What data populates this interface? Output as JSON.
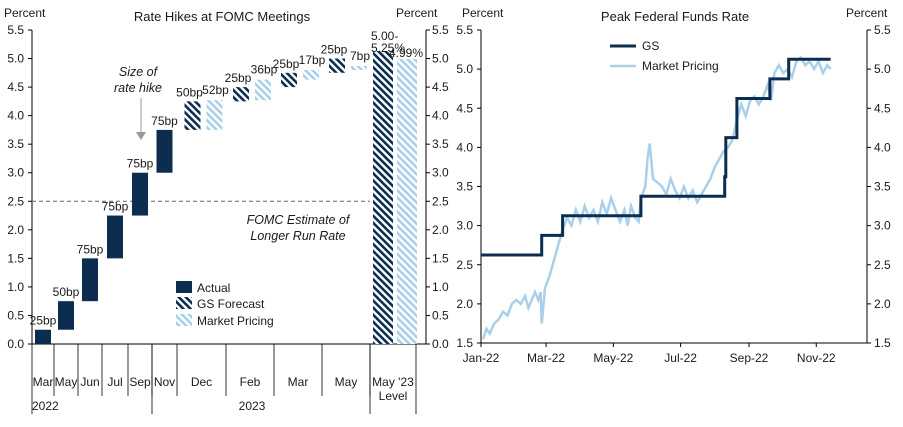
{
  "chart_data": [
    {
      "type": "waterfall",
      "title": "Rate Hikes at FOMC Meetings",
      "ylabel_left": "Percent",
      "ylabel_right": "Percent",
      "ylim": [
        0,
        5.5
      ],
      "yticks": [
        "0.0",
        "0.5",
        "1.0",
        "1.5",
        "2.0",
        "2.5",
        "3.0",
        "3.5",
        "4.0",
        "4.5",
        "5.0",
        "5.5"
      ],
      "reference_line": {
        "value": 2.5,
        "label_line1": "FOMC Estimate of",
        "label_line2": "Longer Run Rate"
      },
      "annotation": {
        "line1": "Size of",
        "line2": "rate hike"
      },
      "meetings": [
        {
          "label": "Mar",
          "type": "actual",
          "start": 0.0,
          "end": 0.25,
          "hike": "25bp"
        },
        {
          "label": "May",
          "type": "actual",
          "start": 0.25,
          "end": 0.75,
          "hike": "50bp"
        },
        {
          "label": "Jun",
          "type": "actual",
          "start": 0.75,
          "end": 1.5,
          "hike": "75bp"
        },
        {
          "label": "Jul",
          "type": "actual",
          "start": 1.5,
          "end": 2.25,
          "hike": "75bp"
        },
        {
          "label": "Sep",
          "type": "actual",
          "start": 2.25,
          "end": 3.0,
          "hike": "75bp"
        },
        {
          "label": "Nov",
          "type": "actual",
          "start": 3.0,
          "end": 3.75,
          "hike": "75bp"
        },
        {
          "label": "Dec",
          "gs": {
            "start": 3.75,
            "end": 4.25,
            "hike": "50bp"
          },
          "market": {
            "start": 3.75,
            "end": 4.27,
            "hike": "52bp"
          }
        },
        {
          "label": "Feb",
          "gs": {
            "start": 4.25,
            "end": 4.5,
            "hike": "25bp"
          },
          "market": {
            "start": 4.27,
            "end": 4.63,
            "hike": "36bp"
          }
        },
        {
          "label": "Mar",
          "gs": {
            "start": 4.5,
            "end": 4.75,
            "hike": "25bp"
          },
          "market": {
            "start": 4.63,
            "end": 4.8,
            "hike": "17bp"
          }
        },
        {
          "label": "May",
          "gs": {
            "start": 4.75,
            "end": 5.0,
            "hike": "25bp"
          },
          "market": {
            "start": 4.8,
            "end": 4.87,
            "hike": "7bp"
          }
        }
      ],
      "level_bars": {
        "label_line1": "May '23",
        "label_line2": "Level",
        "gs": {
          "value": 5.13,
          "label_line1": "5.00-",
          "label_line2": "5.25%"
        },
        "market": {
          "value": 4.99,
          "label": "4.99%"
        }
      },
      "year_labels": {
        "y2022": "2022",
        "y2023": "2023"
      },
      "legend": {
        "actual": "Actual",
        "gs": "GS Forecast",
        "market": "Market Pricing"
      }
    },
    {
      "type": "line",
      "title": "Peak Federal Funds Rate",
      "ylabel_left": "Percent",
      "ylabel_right": "Percent",
      "ylim": [
        1.5,
        5.5
      ],
      "yticks": [
        "1.5",
        "2.0",
        "2.5",
        "3.0",
        "3.5",
        "4.0",
        "4.5",
        "5.0",
        "5.5"
      ],
      "xticks": [
        "Jan-22",
        "Mar-22",
        "May-22",
        "Jul-22",
        "Sep-22",
        "Nov-22"
      ],
      "x_range_days": [
        0,
        350
      ],
      "series": [
        {
          "name": "GS",
          "color": "#0c2d4f",
          "points": [
            [
              0,
              2.625
            ],
            [
              55,
              2.625
            ],
            [
              55,
              2.875
            ],
            [
              74,
              2.875
            ],
            [
              74,
              3.125
            ],
            [
              145,
              3.125
            ],
            [
              145,
              3.375
            ],
            [
              221,
              3.375
            ],
            [
              221,
              3.625
            ],
            [
              222,
              3.625
            ],
            [
              222,
              4.125
            ],
            [
              232,
              4.125
            ],
            [
              232,
              4.625
            ],
            [
              262,
              4.625
            ],
            [
              262,
              4.875
            ],
            [
              279,
              4.875
            ],
            [
              279,
              5.125
            ],
            [
              317,
              5.125
            ]
          ]
        },
        {
          "name": "Market Pricing",
          "color": "#a9cfe9",
          "points": [
            [
              2,
              1.55
            ],
            [
              5,
              1.68
            ],
            [
              8,
              1.62
            ],
            [
              12,
              1.75
            ],
            [
              16,
              1.8
            ],
            [
              20,
              1.9
            ],
            [
              24,
              1.85
            ],
            [
              28,
              2.0
            ],
            [
              32,
              2.05
            ],
            [
              36,
              2.0
            ],
            [
              40,
              2.1
            ],
            [
              43,
              1.95
            ],
            [
              46,
              2.05
            ],
            [
              49,
              2.15
            ],
            [
              52,
              2.05
            ],
            [
              54,
              2.15
            ],
            [
              55,
              1.75
            ],
            [
              58,
              2.2
            ],
            [
              62,
              2.35
            ],
            [
              66,
              2.55
            ],
            [
              70,
              2.75
            ],
            [
              74,
              2.95
            ],
            [
              78,
              3.1
            ],
            [
              82,
              3.0
            ],
            [
              86,
              3.2
            ],
            [
              90,
              3.05
            ],
            [
              94,
              3.25
            ],
            [
              98,
              3.1
            ],
            [
              102,
              3.2
            ],
            [
              106,
              3.05
            ],
            [
              110,
              3.3
            ],
            [
              114,
              3.15
            ],
            [
              118,
              3.35
            ],
            [
              122,
              3.2
            ],
            [
              126,
              3.05
            ],
            [
              130,
              3.2
            ],
            [
              133,
              3.0
            ],
            [
              136,
              3.25
            ],
            [
              140,
              3.1
            ],
            [
              143,
              3.05
            ],
            [
              145,
              3.35
            ],
            [
              149,
              3.5
            ],
            [
              151,
              3.85
            ],
            [
              153,
              4.05
            ],
            [
              156,
              3.6
            ],
            [
              160,
              3.55
            ],
            [
              164,
              3.5
            ],
            [
              168,
              3.4
            ],
            [
              172,
              3.6
            ],
            [
              176,
              3.45
            ],
            [
              180,
              3.35
            ],
            [
              184,
              3.5
            ],
            [
              188,
              3.35
            ],
            [
              192,
              3.45
            ],
            [
              196,
              3.3
            ],
            [
              200,
              3.4
            ],
            [
              204,
              3.5
            ],
            [
              208,
              3.6
            ],
            [
              212,
              3.75
            ],
            [
              216,
              3.85
            ],
            [
              220,
              3.95
            ],
            [
              224,
              4.0
            ],
            [
              228,
              4.1
            ],
            [
              232,
              4.35
            ],
            [
              236,
              4.55
            ],
            [
              240,
              4.4
            ],
            [
              244,
              4.6
            ],
            [
              248,
              4.65
            ],
            [
              252,
              4.55
            ],
            [
              256,
              4.65
            ],
            [
              260,
              4.8
            ],
            [
              263,
              4.6
            ],
            [
              266,
              4.95
            ],
            [
              270,
              5.05
            ],
            [
              274,
              4.95
            ],
            [
              278,
              5.0
            ],
            [
              282,
              4.9
            ],
            [
              286,
              5.1
            ],
            [
              290,
              5.15
            ],
            [
              294,
              5.05
            ],
            [
              298,
              5.1
            ],
            [
              302,
              5.0
            ],
            [
              306,
              5.1
            ],
            [
              310,
              4.95
            ],
            [
              314,
              5.05
            ],
            [
              317,
              5.0
            ]
          ]
        }
      ]
    }
  ]
}
